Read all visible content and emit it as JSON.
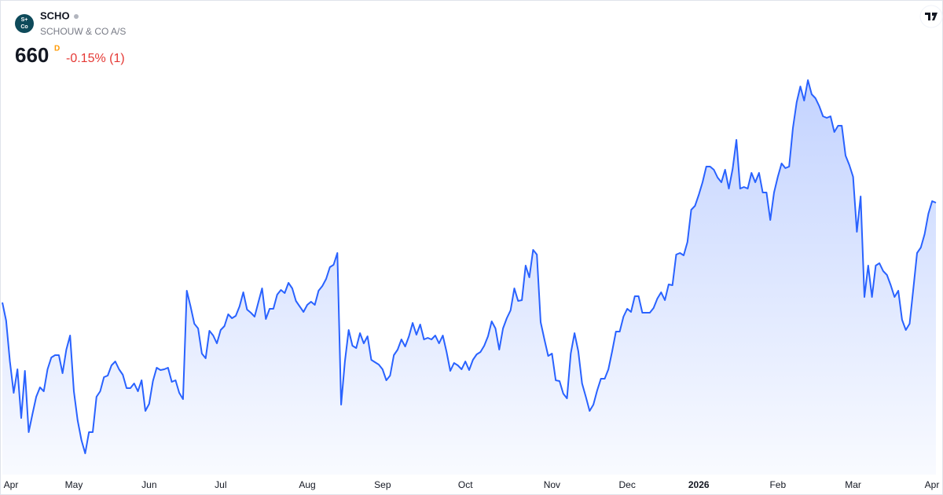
{
  "chart_data": {
    "type": "area",
    "title": "SCHO",
    "subtitle": "SCHOUW & CO A/S",
    "logo": [
      "S+",
      "Co"
    ],
    "price": 660,
    "interval": "D",
    "change": "-0.15% (1)",
    "color": "#2962ff",
    "ylim": [
      487,
      789
    ],
    "categories": [
      null,
      null,
      "Apr",
      null,
      null,
      null,
      null,
      null,
      null,
      null,
      null,
      null,
      null,
      null,
      null,
      null,
      null,
      null,
      null,
      "May",
      null,
      null,
      null,
      null,
      null,
      null,
      null,
      null,
      null,
      null,
      null,
      null,
      null,
      null,
      null,
      null,
      null,
      null,
      null,
      "Jun",
      null,
      null,
      null,
      null,
      null,
      null,
      null,
      null,
      null,
      null,
      null,
      null,
      null,
      null,
      null,
      null,
      null,
      null,
      "Jul",
      null,
      null,
      null,
      null,
      null,
      null,
      null,
      null,
      null,
      null,
      null,
      null,
      null,
      null,
      null,
      null,
      null,
      null,
      null,
      null,
      null,
      null,
      "Aug",
      null,
      null,
      null,
      null,
      null,
      null,
      null,
      null,
      null,
      null,
      null,
      null,
      null,
      null,
      null,
      null,
      null,
      null,
      null,
      "Sep",
      null,
      null,
      null,
      null,
      null,
      null,
      null,
      null,
      null,
      null,
      null,
      null,
      null,
      null,
      null,
      null,
      null,
      null,
      null,
      null,
      null,
      "Oct",
      null,
      null,
      null,
      null,
      null,
      null,
      null,
      null,
      null,
      null,
      null,
      null,
      null,
      null,
      null,
      null,
      null,
      null,
      null,
      null,
      null,
      null,
      "Nov",
      null,
      null,
      null,
      null,
      null,
      null,
      null,
      null,
      null,
      null,
      null,
      null,
      null,
      null,
      null,
      null,
      null,
      null,
      null,
      "Dec",
      null,
      null,
      null,
      null,
      null,
      null,
      null,
      null,
      null,
      null,
      null,
      null,
      null,
      null,
      null,
      null,
      null,
      null,
      "2026",
      null,
      null,
      null,
      null,
      null,
      null,
      null,
      null,
      null,
      null,
      null,
      null,
      null,
      null,
      null,
      null,
      null,
      null,
      null,
      null,
      "Feb",
      null,
      null,
      null,
      null,
      null,
      null,
      null,
      null,
      null,
      null,
      null,
      null,
      null,
      null,
      null,
      null,
      null,
      null,
      null,
      "Mar",
      null,
      null,
      null,
      null,
      null,
      null,
      null,
      null,
      null,
      null,
      null,
      null,
      null,
      null,
      null,
      null,
      null,
      null,
      null,
      null,
      "Apr",
      null
    ],
    "values": [
      596.5,
      585,
      559,
      539,
      554,
      523,
      553,
      514,
      525.5,
      536.5,
      542.5,
      540,
      554,
      561.5,
      563,
      563,
      551.5,
      566.5,
      575.5,
      540,
      521.5,
      509,
      500.5,
      514,
      514,
      536.5,
      540,
      549,
      550,
      556.5,
      559,
      554,
      550.5,
      542,
      542,
      545,
      540,
      547,
      527.5,
      532,
      546.5,
      555,
      553.5,
      554,
      555,
      546,
      547,
      539,
      535,
      604,
      594,
      583,
      580,
      564,
      561,
      578.5,
      575.5,
      570.5,
      579,
      581.5,
      589,
      586.5,
      588,
      594,
      603,
      592,
      590,
      587.5,
      596.5,
      605.5,
      586,
      592.5,
      592.5,
      601.5,
      604.5,
      602.5,
      609,
      605.5,
      597.5,
      594,
      590.5,
      595,
      597,
      595,
      604,
      607,
      611.5,
      619,
      620.5,
      628,
      531.5,
      559,
      579,
      569,
      567.5,
      577,
      570.5,
      575,
      560,
      558.5,
      557,
      554,
      547,
      550,
      563,
      566.5,
      573,
      568.5,
      575,
      583.5,
      576,
      582.5,
      573,
      574,
      573,
      575.5,
      570.5,
      575.5,
      565,
      553,
      558,
      556.5,
      554,
      559,
      553.5,
      560,
      563.5,
      565,
      569,
      575,
      584.5,
      580,
      566.5,
      580,
      586.5,
      591.5,
      605.5,
      597.5,
      598,
      620,
      612.5,
      630,
      627,
      584,
      573,
      562.5,
      564,
      547,
      546.5,
      538.5,
      535.5,
      564,
      577,
      565.5,
      545,
      536.5,
      527.5,
      531.5,
      540.5,
      548,
      548,
      554,
      565.5,
      578,
      578,
      587.5,
      592.5,
      590.5,
      600.5,
      600.5,
      590,
      590,
      590,
      593,
      599,
      603,
      598,
      608,
      607.5,
      627,
      628,
      626.5,
      635,
      655.5,
      658,
      665,
      673,
      683,
      683,
      681,
      676,
      673,
      681,
      669,
      681.5,
      700,
      669,
      670,
      669,
      679,
      673,
      679,
      666.5,
      666.5,
      649,
      666.5,
      676.5,
      685,
      682,
      683,
      707.5,
      724,
      734,
      725,
      738,
      729,
      726.5,
      721.5,
      715,
      714,
      715,
      705,
      709,
      709,
      690,
      684,
      676.5,
      641.5,
      664,
      600,
      620,
      600,
      620,
      621.5,
      616.5,
      614,
      607.5,
      600,
      604,
      585.5,
      579,
      583,
      605.5,
      628,
      631.5,
      640,
      653,
      661,
      660
    ]
  }
}
